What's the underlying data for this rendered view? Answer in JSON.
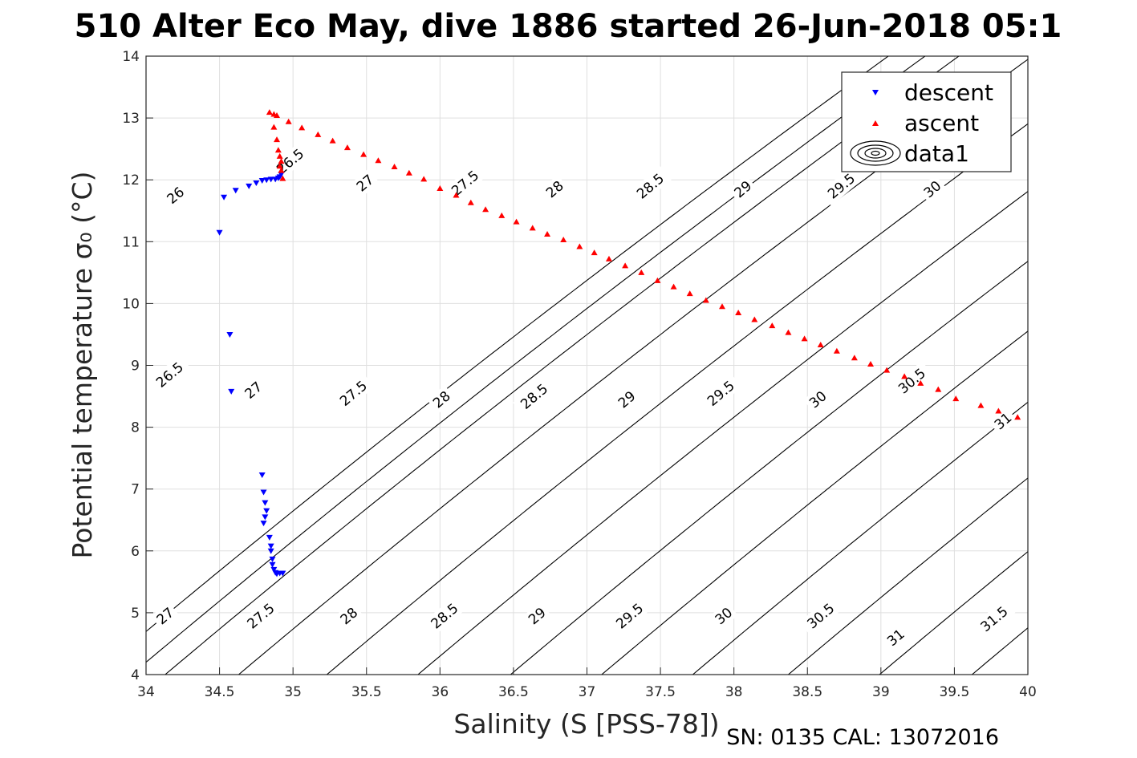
{
  "title": "510 Alter Eco May, dive 1886 started 26-Jun-2018 05:1",
  "footer": "SN: 0135  CAL: 13072016",
  "chart_data": {
    "type": "scatter",
    "xlabel": "Salinity (S [PSS-78])",
    "ylabel": "Potential temperature σ₀ (°C)",
    "xlim": [
      34,
      40
    ],
    "ylim": [
      4,
      14
    ],
    "x_ticks": [
      "34",
      "34.5",
      "35",
      "35.5",
      "36",
      "36.5",
      "37",
      "37.5",
      "38",
      "38.5",
      "39",
      "39.5",
      "40"
    ],
    "y_ticks": [
      "4",
      "5",
      "6",
      "7",
      "8",
      "9",
      "10",
      "11",
      "12",
      "13",
      "14"
    ],
    "grid": true,
    "legend_position": "top-right",
    "legend": [
      "descent",
      "ascent",
      "data1"
    ],
    "series": [
      {
        "name": "descent",
        "color": "#0000ff",
        "marker": "triangle-down",
        "points": [
          [
            34.5,
            11.15
          ],
          [
            34.53,
            11.72
          ],
          [
            34.61,
            11.83
          ],
          [
            34.7,
            11.9
          ],
          [
            34.75,
            11.95
          ],
          [
            34.79,
            11.99
          ],
          [
            34.82,
            12.0
          ],
          [
            34.85,
            12.01
          ],
          [
            34.88,
            12.01
          ],
          [
            34.9,
            12.03
          ],
          [
            34.91,
            12.05
          ],
          [
            34.92,
            12.09
          ],
          [
            34.57,
            9.5
          ],
          [
            34.58,
            8.58
          ],
          [
            34.79,
            7.23
          ],
          [
            34.8,
            6.95
          ],
          [
            34.81,
            6.78
          ],
          [
            34.82,
            6.65
          ],
          [
            34.81,
            6.55
          ],
          [
            34.8,
            6.45
          ],
          [
            34.84,
            6.22
          ],
          [
            34.85,
            6.08
          ],
          [
            34.85,
            6.0
          ],
          [
            34.86,
            5.87
          ],
          [
            34.86,
            5.78
          ],
          [
            34.87,
            5.7
          ],
          [
            34.88,
            5.65
          ],
          [
            34.89,
            5.63
          ],
          [
            34.91,
            5.64
          ],
          [
            34.93,
            5.64
          ]
        ]
      },
      {
        "name": "ascent",
        "color": "#ff0000",
        "marker": "triangle-up",
        "points": [
          [
            34.84,
            13.09
          ],
          [
            34.87,
            13.06
          ],
          [
            34.89,
            13.04
          ],
          [
            34.87,
            12.85
          ],
          [
            34.89,
            12.65
          ],
          [
            34.9,
            12.48
          ],
          [
            34.91,
            12.38
          ],
          [
            34.92,
            12.3
          ],
          [
            34.91,
            12.22
          ],
          [
            34.92,
            12.15
          ],
          [
            34.93,
            12.02
          ],
          [
            34.97,
            12.94
          ],
          [
            35.06,
            12.84
          ],
          [
            35.17,
            12.73
          ],
          [
            35.27,
            12.63
          ],
          [
            35.37,
            12.52
          ],
          [
            35.48,
            12.41
          ],
          [
            35.58,
            12.31
          ],
          [
            35.69,
            12.21
          ],
          [
            35.79,
            12.11
          ],
          [
            35.89,
            12.01
          ],
          [
            36.0,
            11.86
          ],
          [
            36.11,
            11.75
          ],
          [
            36.21,
            11.63
          ],
          [
            36.31,
            11.52
          ],
          [
            36.42,
            11.42
          ],
          [
            36.52,
            11.32
          ],
          [
            36.63,
            11.22
          ],
          [
            36.73,
            11.12
          ],
          [
            36.84,
            11.03
          ],
          [
            36.95,
            10.92
          ],
          [
            37.05,
            10.82
          ],
          [
            37.15,
            10.72
          ],
          [
            37.26,
            10.61
          ],
          [
            37.37,
            10.5
          ],
          [
            37.48,
            10.37
          ],
          [
            37.59,
            10.27
          ],
          [
            37.7,
            10.16
          ],
          [
            37.81,
            10.05
          ],
          [
            37.92,
            9.95
          ],
          [
            38.03,
            9.85
          ],
          [
            38.14,
            9.74
          ],
          [
            38.26,
            9.64
          ],
          [
            38.37,
            9.53
          ],
          [
            38.48,
            9.43
          ],
          [
            38.59,
            9.33
          ],
          [
            38.7,
            9.23
          ],
          [
            38.82,
            9.12
          ],
          [
            38.93,
            9.02
          ],
          [
            39.04,
            8.92
          ],
          [
            39.16,
            8.82
          ],
          [
            39.27,
            8.71
          ],
          [
            39.39,
            8.61
          ],
          [
            39.51,
            8.46
          ],
          [
            39.68,
            8.35
          ],
          [
            39.8,
            8.26
          ],
          [
            39.93,
            8.16
          ]
        ]
      }
    ],
    "isopycnals": [
      {
        "sigma": 26,
        "label": "26",
        "s_base": 33.65,
        "slope": 0.5
      },
      {
        "sigma": 26.5,
        "label": "26.5",
        "s_base": 33.9,
        "slope": 0.5
      },
      {
        "sigma": 27,
        "label": "27",
        "s_base": 34.13,
        "slope": 0.5
      },
      {
        "sigma": 27.5,
        "label": "27.5",
        "s_base": 34.63,
        "slope": 0.5
      },
      {
        "sigma": 28,
        "label": "28",
        "s_base": 35.23,
        "slope": 0.5
      },
      {
        "sigma": 28.5,
        "label": "28.5",
        "s_base": 35.85,
        "slope": 0.5
      },
      {
        "sigma": 29,
        "label": "29",
        "s_base": 36.48,
        "slope": 0.5
      },
      {
        "sigma": 29.5,
        "label": "29.5",
        "s_base": 37.1,
        "slope": 0.5
      },
      {
        "sigma": 30,
        "label": "30",
        "s_base": 37.72,
        "slope": 0.5
      },
      {
        "sigma": 30.5,
        "label": "30.5",
        "s_base": 38.37,
        "slope": 0.5
      },
      {
        "sigma": 31,
        "label": "31",
        "s_base": 38.99,
        "slope": 0.5
      },
      {
        "sigma": 31.5,
        "label": "31.5",
        "s_base": 39.62,
        "slope": 0.5
      }
    ],
    "isopycnal_labels": [
      {
        "text": "26",
        "s": 34.2,
        "t": 11.75
      },
      {
        "text": "26.5",
        "s": 34.16,
        "t": 8.85
      },
      {
        "text": "27",
        "s": 34.13,
        "t": 4.95
      },
      {
        "text": "27",
        "s": 34.73,
        "t": 8.6
      },
      {
        "text": "27",
        "s": 35.49,
        "t": 11.95
      },
      {
        "text": "27.5",
        "s": 34.78,
        "t": 4.95
      },
      {
        "text": "27.5",
        "s": 35.41,
        "t": 8.55
      },
      {
        "text": "27.5",
        "s": 36.17,
        "t": 11.95
      },
      {
        "text": "28",
        "s": 35.38,
        "t": 4.95
      },
      {
        "text": "28",
        "s": 36.01,
        "t": 8.45
      },
      {
        "text": "28",
        "s": 36.78,
        "t": 11.85
      },
      {
        "text": "28.5",
        "s": 36.03,
        "t": 4.95
      },
      {
        "text": "28.5",
        "s": 36.64,
        "t": 8.5
      },
      {
        "text": "28.5",
        "s": 37.43,
        "t": 11.9
      },
      {
        "text": "29",
        "s": 36.66,
        "t": 4.95
      },
      {
        "text": "29",
        "s": 37.27,
        "t": 8.45
      },
      {
        "text": "29",
        "s": 38.06,
        "t": 11.85
      },
      {
        "text": "29.5",
        "s": 37.29,
        "t": 4.95
      },
      {
        "text": "29.5",
        "s": 37.91,
        "t": 8.55
      },
      {
        "text": "29.5",
        "s": 38.73,
        "t": 11.9
      },
      {
        "text": "30",
        "s": 37.93,
        "t": 4.95
      },
      {
        "text": "30",
        "s": 38.57,
        "t": 8.45
      },
      {
        "text": "30",
        "s": 39.35,
        "t": 11.85
      },
      {
        "text": "30.5",
        "s": 38.59,
        "t": 4.95
      },
      {
        "text": "30.5",
        "s": 39.21,
        "t": 8.75
      },
      {
        "text": "31",
        "s": 39.1,
        "t": 4.6
      },
      {
        "text": "31",
        "s": 39.83,
        "t": 8.1
      },
      {
        "text": "31.5",
        "s": 39.77,
        "t": 4.9
      },
      {
        "text": "26.5",
        "s": 34.98,
        "t": 12.3
      }
    ]
  }
}
